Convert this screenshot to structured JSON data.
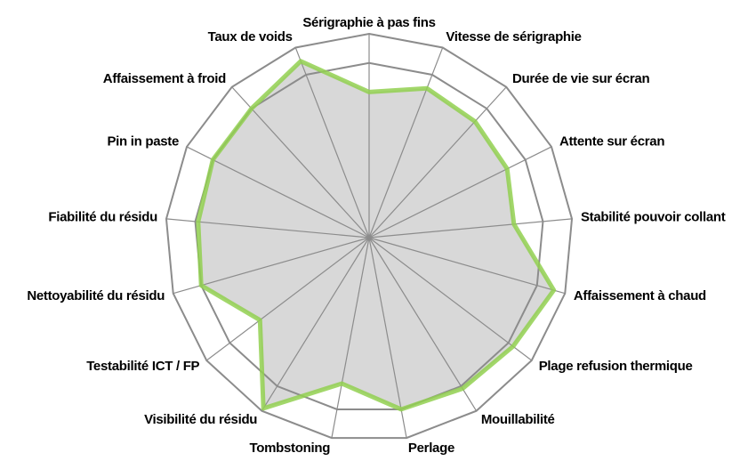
{
  "chart_data": {
    "type": "radar",
    "categories": [
      "Sérigraphie à pas fins",
      "Vitesse de sérigraphie",
      "Durée de vie sur écran",
      "Attente sur écran",
      "Stabilité pouvoir collant",
      "Affaissement à chaud",
      "Plage refusion thermique",
      "Mouillabilité",
      "Perlage",
      "Tombstoning",
      "Visibilité du résidu",
      "Testabilité ICT / FP",
      "Nettoyabilité du résidu",
      "Fiabilité du résidu",
      "Pin in paste",
      "Affaissement à froid",
      "Taux de voids"
    ],
    "values": [
      5.0,
      5.5,
      5.4,
      5.3,
      5.0,
      6.6,
      6.2,
      6.1,
      6.0,
      5.1,
      6.9,
      4.7,
      6.0,
      5.9,
      6.0,
      6.0,
      6.5
    ],
    "color": "#92d050",
    "fill": "#d4d4d4",
    "ylim": [
      0,
      7
    ],
    "yticks": [
      6,
      7
    ],
    "grid": true
  }
}
